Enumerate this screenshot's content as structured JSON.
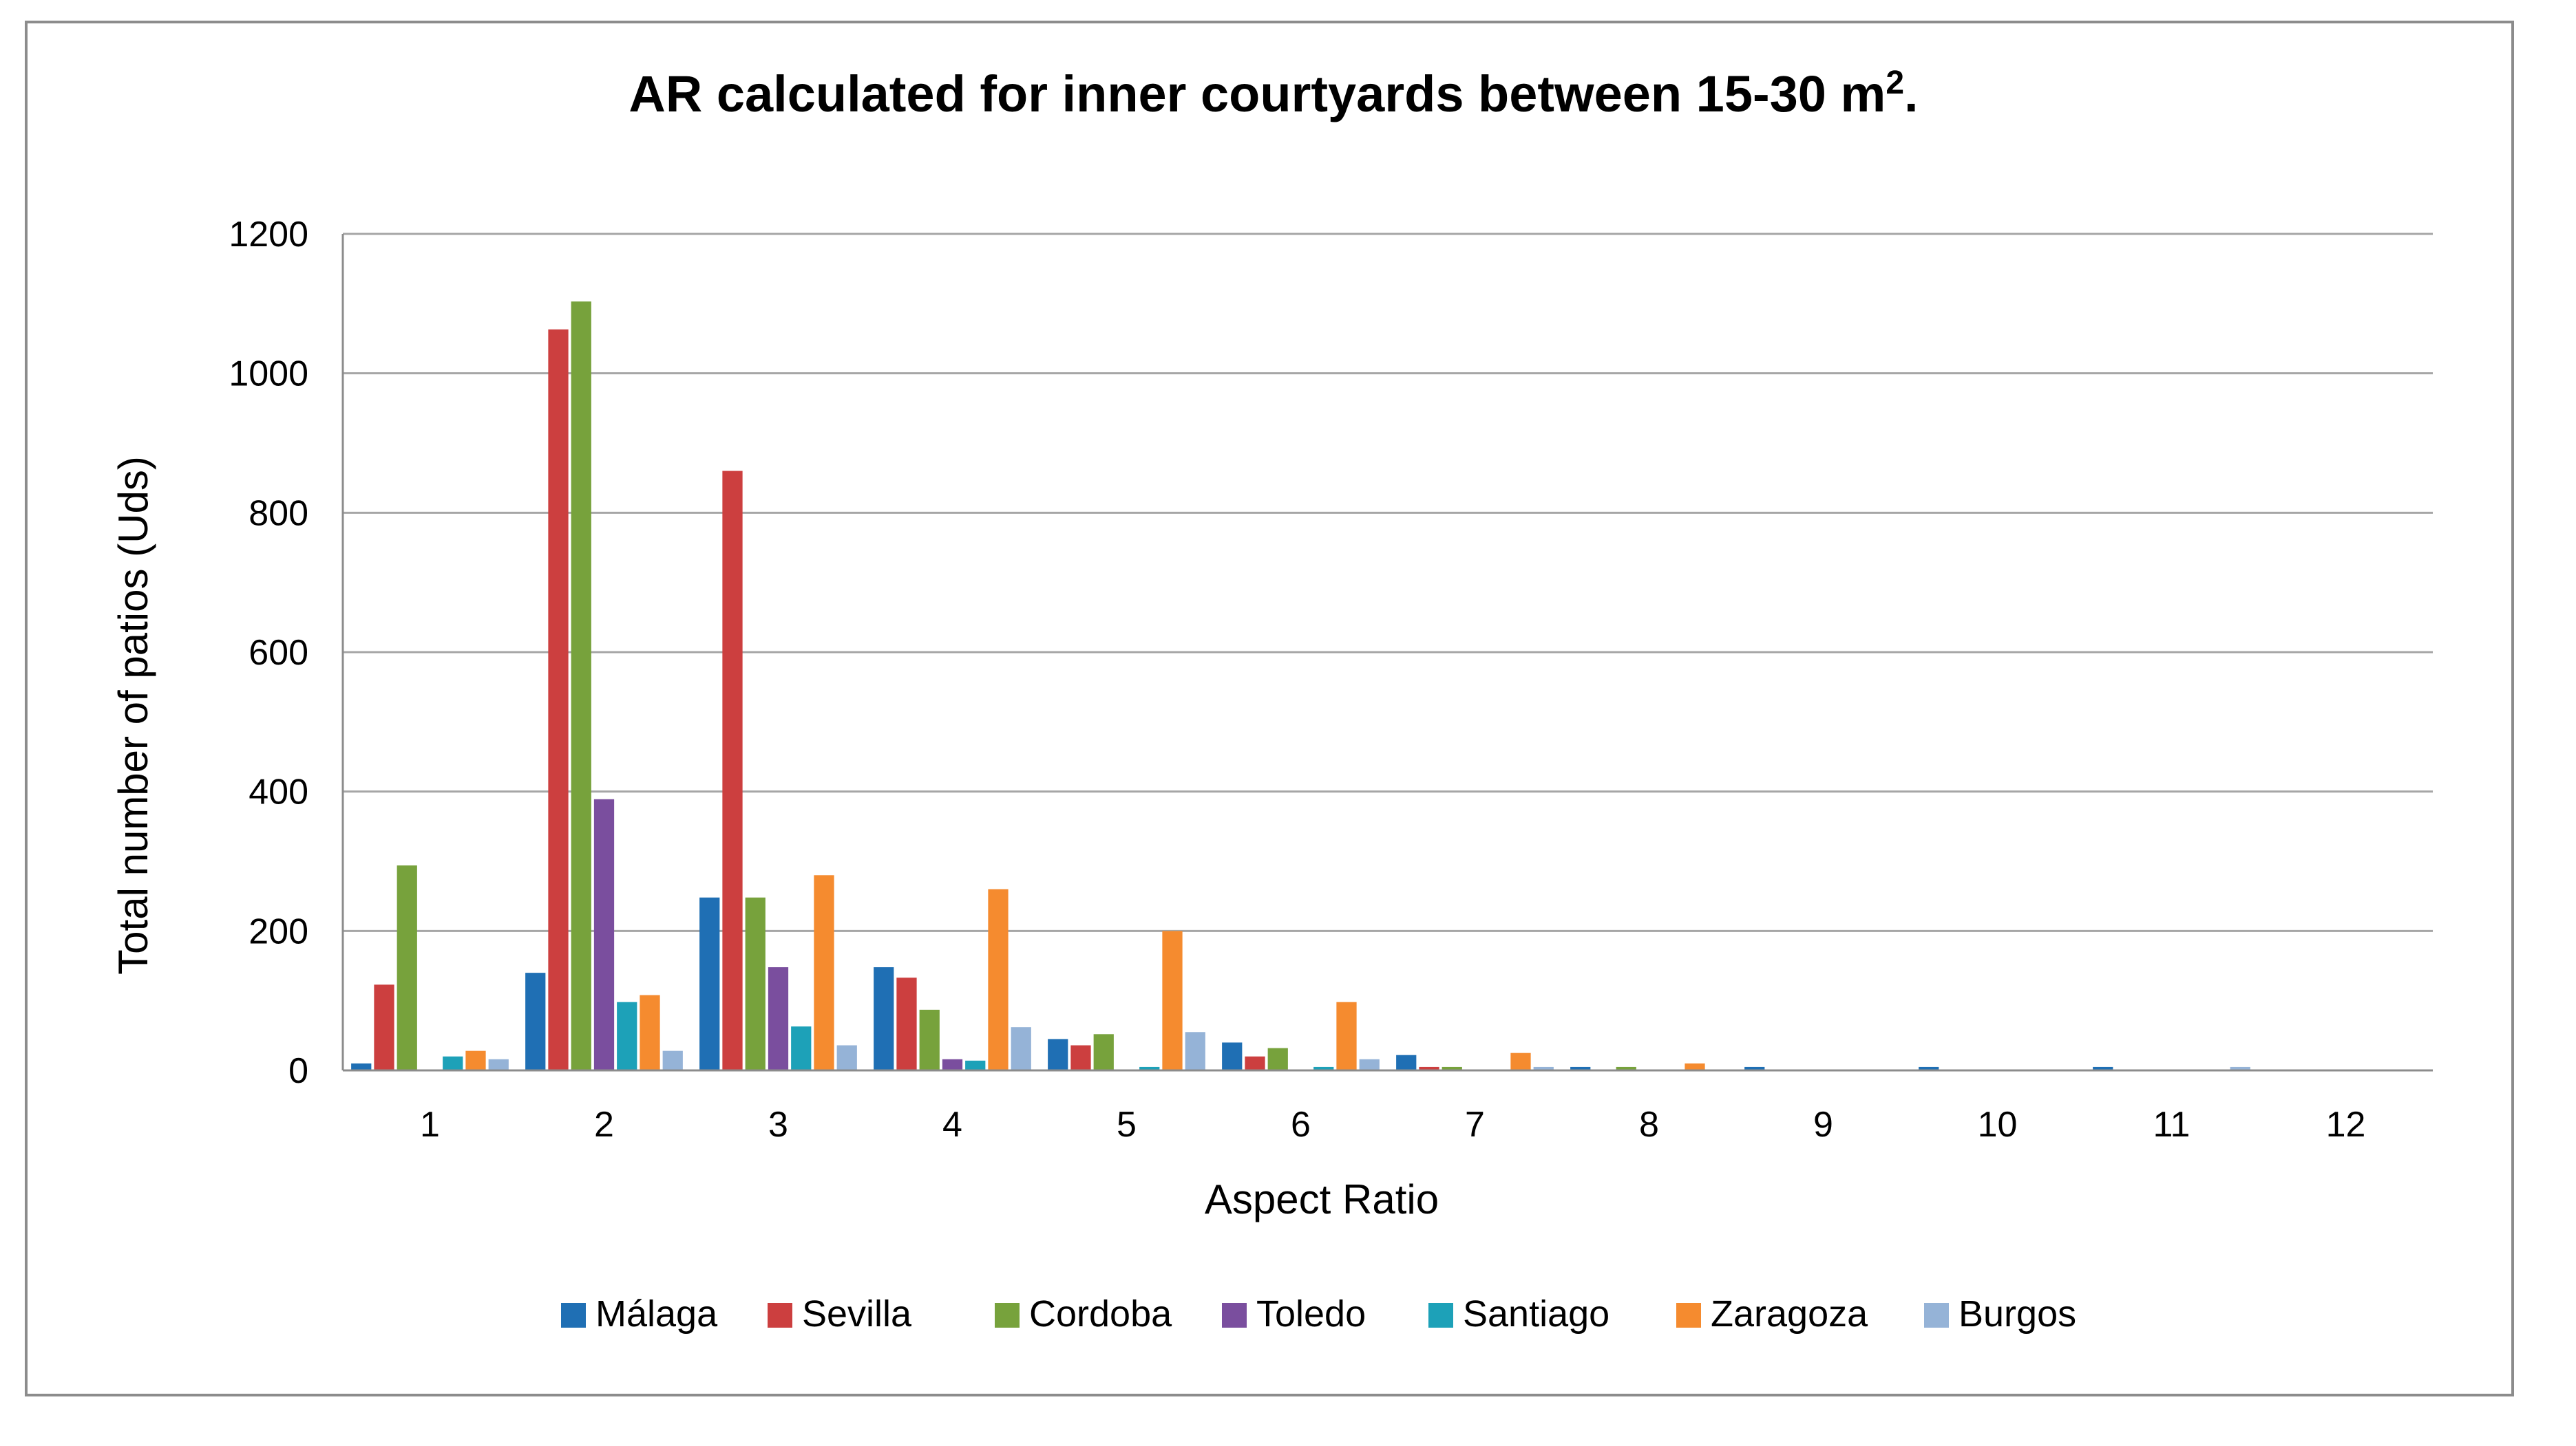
{
  "chart_data": {
    "type": "bar",
    "title": "AR calculated for inner courtyards between 15-30 m",
    "title_superscript": "2",
    "title_suffix": ".",
    "xlabel": "Aspect Ratio",
    "ylabel": "Total number of patios (Uds)",
    "ylim": [
      0,
      1200
    ],
    "yticks": [
      0,
      200,
      400,
      600,
      800,
      1000,
      1200
    ],
    "grid": true,
    "legend_position": "bottom",
    "categories": [
      "1",
      "2",
      "3",
      "4",
      "5",
      "6",
      "7",
      "8",
      "9",
      "10",
      "11",
      "12"
    ],
    "series": [
      {
        "name": "Málaga",
        "color": "#1F6FB4",
        "values": [
          10,
          140,
          248,
          148,
          45,
          40,
          22,
          5,
          5,
          5,
          5,
          0
        ]
      },
      {
        "name": "Sevilla",
        "color": "#CC3F3F",
        "values": [
          123,
          1063,
          860,
          133,
          36,
          20,
          5,
          0,
          0,
          0,
          0,
          0
        ]
      },
      {
        "name": "Cordoba",
        "color": "#77A23C",
        "values": [
          294,
          1103,
          248,
          87,
          52,
          32,
          5,
          5,
          0,
          0,
          0,
          0
        ]
      },
      {
        "name": "Toledo",
        "color": "#7A4E9E",
        "values": [
          0,
          389,
          148,
          16,
          0,
          0,
          0,
          0,
          0,
          0,
          0,
          0
        ]
      },
      {
        "name": "Santiago",
        "color": "#1DA1B8",
        "values": [
          20,
          98,
          63,
          14,
          5,
          5,
          0,
          0,
          0,
          0,
          0,
          0
        ]
      },
      {
        "name": "Zaragoza",
        "color": "#F58B2F",
        "values": [
          28,
          108,
          280,
          260,
          200,
          98,
          25,
          10,
          0,
          0,
          0,
          0
        ]
      },
      {
        "name": "Burgos",
        "color": "#95B3D7",
        "values": [
          16,
          28,
          36,
          62,
          55,
          16,
          5,
          0,
          0,
          0,
          5,
          0
        ]
      }
    ]
  }
}
